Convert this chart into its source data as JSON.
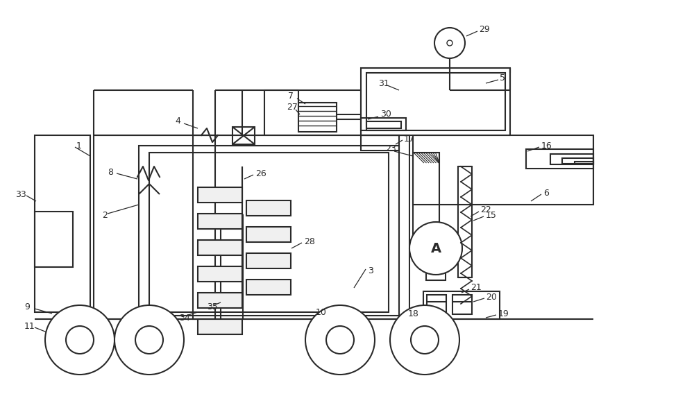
{
  "bg_color": "#ffffff",
  "line_color": "#2a2a2a",
  "fig_width": 10.0,
  "fig_height": 5.68,
  "dpi": 100
}
